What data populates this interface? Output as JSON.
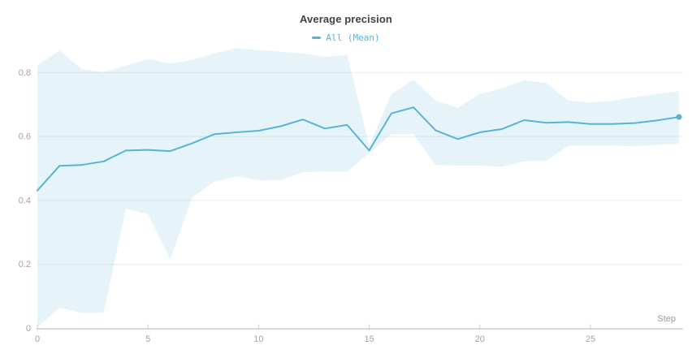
{
  "header": {
    "title": "Average precision",
    "legend": {
      "items": [
        {
          "label": "All (Mean)",
          "marker": "line-dash"
        }
      ]
    }
  },
  "axes": {
    "x_label": "Step",
    "x_tick_labels": [
      "0",
      "5",
      "10",
      "15",
      "20",
      "25"
    ],
    "y_tick_labels": [
      "0",
      "0.2",
      "0.4",
      "0.6",
      "0.8"
    ]
  },
  "colors": {
    "line": "#56b5d6",
    "band_fill": "rgba(86,181,214,0.15)",
    "gridline": "#ececec",
    "axis_line": "#d9d9d9",
    "tick_mark": "#cfcfcf",
    "title_text": "#3d4348",
    "tick_text": "#a3a3a3",
    "axis_label_text": "#9a9aa0"
  },
  "chart_data": {
    "type": "line",
    "title": "Average precision",
    "xlabel": "Step",
    "ylabel": "",
    "legend_position": "top-center",
    "grid": "horizontal",
    "marker_on_last_point": true,
    "xlim": [
      0,
      29.2
    ],
    "ylim": [
      0,
      0.9
    ],
    "x_ticks": [
      0,
      5,
      10,
      15,
      20,
      25
    ],
    "y_ticks": [
      0,
      0.2,
      0.4,
      0.6,
      0.8
    ],
    "x": [
      0,
      1,
      2,
      3,
      4,
      5,
      6,
      7,
      8,
      9,
      10,
      11,
      12,
      13,
      14,
      15,
      16,
      17,
      18,
      19,
      20,
      21,
      22,
      23,
      24,
      25,
      26,
      27,
      28,
      29
    ],
    "series": [
      {
        "name": "All (Mean)",
        "values": [
          0.431,
          0.508,
          0.511,
          0.522,
          0.556,
          0.558,
          0.554,
          0.579,
          0.607,
          0.613,
          0.618,
          0.632,
          0.653,
          0.625,
          0.636,
          0.556,
          0.672,
          0.691,
          0.619,
          0.592,
          0.613,
          0.623,
          0.651,
          0.643,
          0.645,
          0.639,
          0.639,
          0.642,
          0.65,
          0.661
        ]
      }
    ],
    "band": {
      "name": "min-max envelope",
      "upper": [
        0.822,
        0.869,
        0.811,
        0.801,
        0.822,
        0.842,
        0.828,
        0.839,
        0.86,
        0.876,
        0.87,
        0.865,
        0.86,
        0.848,
        0.856,
        0.572,
        0.732,
        0.777,
        0.712,
        0.69,
        0.733,
        0.75,
        0.776,
        0.767,
        0.712,
        0.706,
        0.712,
        0.723,
        0.733,
        0.742
      ],
      "lower": [
        0.003,
        0.065,
        0.048,
        0.05,
        0.374,
        0.357,
        0.215,
        0.41,
        0.459,
        0.475,
        0.463,
        0.464,
        0.488,
        0.49,
        0.49,
        0.548,
        0.607,
        0.607,
        0.511,
        0.509,
        0.509,
        0.505,
        0.522,
        0.524,
        0.571,
        0.571,
        0.571,
        0.569,
        0.574,
        0.577
      ]
    }
  }
}
